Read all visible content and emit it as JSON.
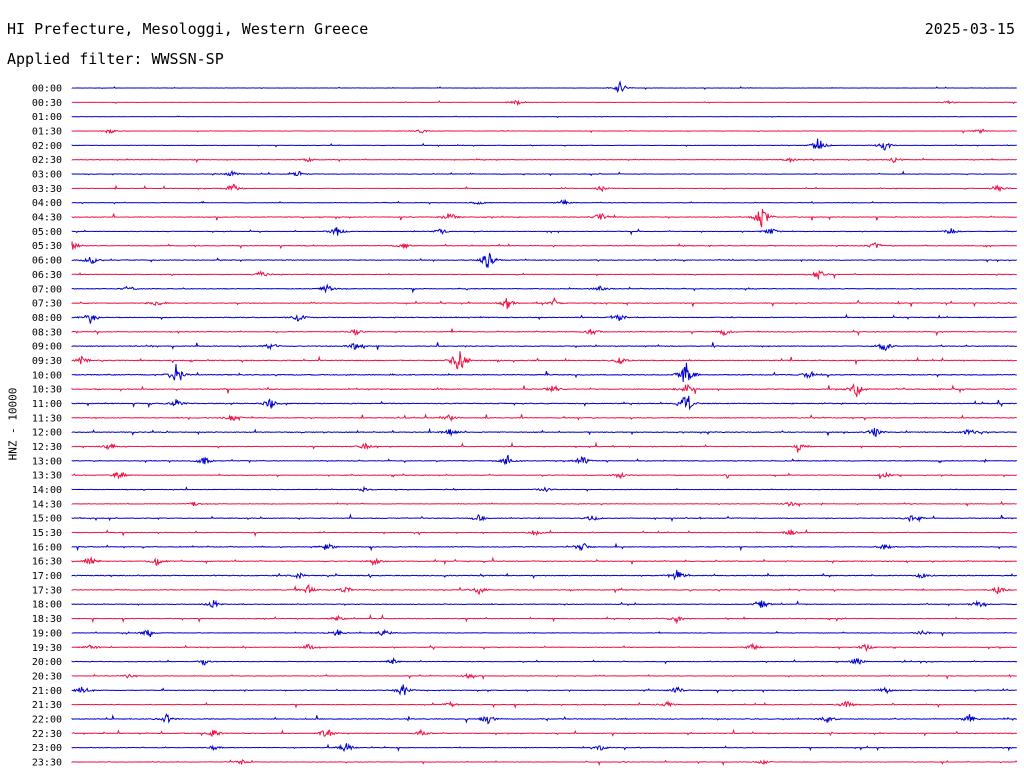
{
  "header": {
    "station": "HI Prefecture, Mesologgi, Western Greece",
    "date": "2025-03-15",
    "filter": "Applied filter: WWSSN-SP"
  },
  "chart_data": {
    "type": "line",
    "ylabel": "HNZ - 10000",
    "colors": [
      "#0000cc",
      "#ee1144"
    ],
    "rows": [
      {
        "label": "00:00",
        "level": 0.3,
        "events": [
          [
            0.58,
            1.0
          ]
        ]
      },
      {
        "label": "00:30",
        "level": 0.3,
        "events": [
          [
            0.47,
            0.5
          ],
          [
            0.93,
            0.3
          ]
        ]
      },
      {
        "label": "01:00",
        "level": 0.2,
        "events": []
      },
      {
        "label": "01:30",
        "level": 0.4,
        "events": [
          [
            0.04,
            0.5
          ],
          [
            0.37,
            0.3
          ],
          [
            0.96,
            0.3
          ]
        ]
      },
      {
        "label": "02:00",
        "level": 0.4,
        "events": [
          [
            0.79,
            1.2
          ],
          [
            0.86,
            0.9
          ]
        ]
      },
      {
        "label": "02:30",
        "level": 0.5,
        "events": [
          [
            0.25,
            0.3
          ],
          [
            0.76,
            0.4
          ],
          [
            0.87,
            0.5
          ]
        ]
      },
      {
        "label": "03:00",
        "level": 0.6,
        "events": [
          [
            0.17,
            0.5
          ],
          [
            0.24,
            0.4
          ]
        ]
      },
      {
        "label": "03:30",
        "level": 0.5,
        "events": [
          [
            0.17,
            0.8
          ],
          [
            0.56,
            0.4
          ],
          [
            0.98,
            0.5
          ]
        ]
      },
      {
        "label": "04:00",
        "level": 0.5,
        "events": [
          [
            0.43,
            0.5
          ],
          [
            0.52,
            0.5
          ]
        ]
      },
      {
        "label": "04:30",
        "level": 0.8,
        "events": [
          [
            0.4,
            0.8
          ],
          [
            0.56,
            0.8
          ],
          [
            0.73,
            2.2
          ]
        ]
      },
      {
        "label": "05:00",
        "level": 0.6,
        "events": [
          [
            0.28,
            0.8
          ],
          [
            0.39,
            0.5
          ],
          [
            0.74,
            0.6
          ],
          [
            0.93,
            0.5
          ]
        ]
      },
      {
        "label": "05:30",
        "level": 0.7,
        "events": [
          [
            0.0,
            0.8
          ],
          [
            0.35,
            0.5
          ],
          [
            0.85,
            0.5
          ]
        ]
      },
      {
        "label": "06:00",
        "level": 0.8,
        "events": [
          [
            0.44,
            1.6
          ],
          [
            0.02,
            0.8
          ]
        ]
      },
      {
        "label": "06:30",
        "level": 0.7,
        "events": [
          [
            0.2,
            0.5
          ],
          [
            0.79,
            0.8
          ]
        ]
      },
      {
        "label": "07:00",
        "level": 0.8,
        "events": [
          [
            0.06,
            0.5
          ],
          [
            0.27,
            0.6
          ],
          [
            0.56,
            0.5
          ]
        ]
      },
      {
        "label": "07:30",
        "level": 0.8,
        "events": [
          [
            0.09,
            0.6
          ],
          [
            0.46,
            1.0
          ],
          [
            0.51,
            0.6
          ]
        ]
      },
      {
        "label": "08:00",
        "level": 0.9,
        "events": [
          [
            0.02,
            1.0
          ],
          [
            0.24,
            0.6
          ],
          [
            0.58,
            0.6
          ]
        ]
      },
      {
        "label": "08:30",
        "level": 0.8,
        "events": [
          [
            0.3,
            0.5
          ],
          [
            0.55,
            0.6
          ],
          [
            0.69,
            0.6
          ]
        ]
      },
      {
        "label": "09:00",
        "level": 0.9,
        "events": [
          [
            0.21,
            0.5
          ],
          [
            0.3,
            0.7
          ],
          [
            0.86,
            0.8
          ]
        ]
      },
      {
        "label": "09:30",
        "level": 1.0,
        "events": [
          [
            0.41,
            2.6
          ],
          [
            0.01,
            0.6
          ],
          [
            0.58,
            0.6
          ]
        ]
      },
      {
        "label": "10:00",
        "level": 1.0,
        "events": [
          [
            0.11,
            1.6
          ],
          [
            0.65,
            2.4
          ],
          [
            0.78,
            0.6
          ]
        ]
      },
      {
        "label": "10:30",
        "level": 1.0,
        "events": [
          [
            0.51,
            0.7
          ],
          [
            0.65,
            0.9
          ],
          [
            0.83,
            1.2
          ]
        ]
      },
      {
        "label": "11:00",
        "level": 1.0,
        "events": [
          [
            0.11,
            0.7
          ],
          [
            0.21,
            0.8
          ],
          [
            0.65,
            2.0
          ]
        ]
      },
      {
        "label": "11:30",
        "level": 0.9,
        "events": [
          [
            0.17,
            0.6
          ],
          [
            0.4,
            0.5
          ]
        ]
      },
      {
        "label": "12:00",
        "level": 0.9,
        "events": [
          [
            0.4,
            0.6
          ],
          [
            0.85,
            0.8
          ],
          [
            0.95,
            0.6
          ]
        ]
      },
      {
        "label": "12:30",
        "level": 0.7,
        "events": [
          [
            0.04,
            0.6
          ],
          [
            0.31,
            0.5
          ],
          [
            0.77,
            0.5
          ]
        ]
      },
      {
        "label": "13:00",
        "level": 0.8,
        "events": [
          [
            0.14,
            0.8
          ],
          [
            0.54,
            0.8
          ],
          [
            0.46,
            0.6
          ]
        ]
      },
      {
        "label": "13:30",
        "level": 0.7,
        "events": [
          [
            0.05,
            0.6
          ],
          [
            0.58,
            0.5
          ],
          [
            0.86,
            0.5
          ]
        ]
      },
      {
        "label": "14:00",
        "level": 0.6,
        "events": [
          [
            0.31,
            0.4
          ],
          [
            0.5,
            0.4
          ]
        ]
      },
      {
        "label": "14:30",
        "level": 0.6,
        "events": [
          [
            0.13,
            0.4
          ],
          [
            0.76,
            0.4
          ]
        ]
      },
      {
        "label": "15:00",
        "level": 0.8,
        "events": [
          [
            0.43,
            0.6
          ],
          [
            0.89,
            0.9
          ],
          [
            0.55,
            0.5
          ]
        ]
      },
      {
        "label": "15:30",
        "level": 0.7,
        "events": [
          [
            0.49,
            0.5
          ],
          [
            0.76,
            0.5
          ]
        ]
      },
      {
        "label": "16:00",
        "level": 0.8,
        "events": [
          [
            0.27,
            0.8
          ],
          [
            0.54,
            0.6
          ],
          [
            0.86,
            0.5
          ]
        ]
      },
      {
        "label": "16:30",
        "level": 0.9,
        "events": [
          [
            0.02,
            0.6
          ],
          [
            0.09,
            0.6
          ],
          [
            0.32,
            0.5
          ]
        ]
      },
      {
        "label": "17:00",
        "level": 1.0,
        "events": [
          [
            0.64,
            1.0
          ],
          [
            0.24,
            0.5
          ],
          [
            0.9,
            0.5
          ]
        ]
      },
      {
        "label": "17:30",
        "level": 0.9,
        "events": [
          [
            0.25,
            0.8
          ],
          [
            0.29,
            0.6
          ],
          [
            0.43,
            0.7
          ],
          [
            0.98,
            0.6
          ]
        ]
      },
      {
        "label": "18:00",
        "level": 0.8,
        "events": [
          [
            0.15,
            0.6
          ],
          [
            0.73,
            0.7
          ],
          [
            0.96,
            0.8
          ]
        ]
      },
      {
        "label": "18:30",
        "level": 0.7,
        "events": [
          [
            0.64,
            0.6
          ],
          [
            0.28,
            0.4
          ]
        ]
      },
      {
        "label": "19:00",
        "level": 0.6,
        "events": [
          [
            0.08,
            0.5
          ],
          [
            0.28,
            0.6
          ],
          [
            0.33,
            0.7
          ],
          [
            0.9,
            0.4
          ]
        ]
      },
      {
        "label": "19:30",
        "level": 0.7,
        "events": [
          [
            0.02,
            0.5
          ],
          [
            0.25,
            0.5
          ],
          [
            0.72,
            0.6
          ],
          [
            0.84,
            0.6
          ]
        ]
      },
      {
        "label": "20:00",
        "level": 0.6,
        "events": [
          [
            0.14,
            0.5
          ],
          [
            0.34,
            0.5
          ],
          [
            0.83,
            0.6
          ]
        ]
      },
      {
        "label": "20:30",
        "level": 0.6,
        "events": [
          [
            0.06,
            0.4
          ],
          [
            0.42,
            0.4
          ]
        ]
      },
      {
        "label": "21:00",
        "level": 0.7,
        "events": [
          [
            0.01,
            0.6
          ],
          [
            0.35,
            1.1
          ],
          [
            0.64,
            0.6
          ],
          [
            0.86,
            0.5
          ]
        ]
      },
      {
        "label": "21:30",
        "level": 0.7,
        "events": [
          [
            0.4,
            0.5
          ],
          [
            0.63,
            0.5
          ],
          [
            0.82,
            0.6
          ]
        ]
      },
      {
        "label": "22:00",
        "level": 0.9,
        "events": [
          [
            0.1,
            0.7
          ],
          [
            0.44,
            0.8
          ],
          [
            0.8,
            0.7
          ],
          [
            0.95,
            0.7
          ]
        ]
      },
      {
        "label": "22:30",
        "level": 0.7,
        "events": [
          [
            0.15,
            0.6
          ],
          [
            0.27,
            1.0
          ],
          [
            0.37,
            0.5
          ]
        ]
      },
      {
        "label": "23:00",
        "level": 0.6,
        "events": [
          [
            0.29,
            0.9
          ],
          [
            0.15,
            0.4
          ],
          [
            0.56,
            0.4
          ]
        ]
      },
      {
        "label": "23:30",
        "level": 0.6,
        "events": [
          [
            0.18,
            0.4
          ],
          [
            0.73,
            0.4
          ]
        ]
      }
    ]
  }
}
